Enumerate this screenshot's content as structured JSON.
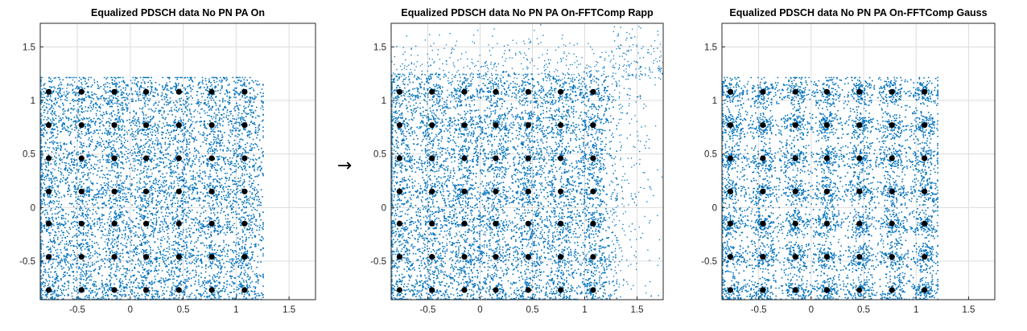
{
  "arrow": {
    "glyph": "→"
  },
  "chart_data": [
    {
      "type": "scatter",
      "title": "Equalized PDSCH data No PN PA On",
      "xlim": [
        -0.85,
        1.75
      ],
      "ylim": [
        -0.86,
        1.72
      ],
      "xticks": [
        -0.5,
        0,
        0.5,
        1,
        1.5
      ],
      "xtick_labels": [
        "-0.5",
        "0",
        "0.5",
        "1",
        "1.5"
      ],
      "yticks": [
        -0.5,
        0,
        0.5,
        1,
        1.5
      ],
      "ytick_labels": [
        "-0.5",
        "0",
        "0.5",
        "1",
        "1.5"
      ],
      "grid": true,
      "reference_points": {
        "x": [
          -0.77,
          -0.46,
          -0.15,
          0.15,
          0.46,
          0.77,
          1.08
        ],
        "y": [
          -0.77,
          -0.46,
          -0.15,
          0.15,
          0.46,
          0.77,
          1.08
        ]
      },
      "cloud": {
        "x_min": -0.85,
        "x_max": 1.25,
        "y_min": -0.85,
        "y_max": 1.22,
        "spread": 0.1,
        "noise": 0.13,
        "rapp_tail": false
      },
      "colors": {
        "samples": "#0072BD",
        "reference": "#000000"
      }
    },
    {
      "type": "scatter",
      "title": "Equalized PDSCH data No PN PA On-FFTComp Rapp",
      "xlim": [
        -0.85,
        1.75
      ],
      "ylim": [
        -0.86,
        1.72
      ],
      "xticks": [
        -0.5,
        0,
        0.5,
        1,
        1.5
      ],
      "xtick_labels": [
        "-0.5",
        "0",
        "0.5",
        "1",
        "1.5"
      ],
      "yticks": [
        -0.5,
        0,
        0.5,
        1,
        1.5
      ],
      "ytick_labels": [
        "-0.5",
        "0",
        "0.5",
        "1",
        "1.5"
      ],
      "grid": true,
      "reference_points": {
        "x": [
          -0.77,
          -0.46,
          -0.15,
          0.15,
          0.46,
          0.77,
          1.08
        ],
        "y": [
          -0.77,
          -0.46,
          -0.15,
          0.15,
          0.46,
          0.77,
          1.08
        ]
      },
      "cloud": {
        "x_min": -0.85,
        "x_max": 1.3,
        "y_min": -0.85,
        "y_max": 1.25,
        "spread": 0.1,
        "noise": 0.12,
        "rapp_tail": true
      },
      "colors": {
        "samples": "#0072BD",
        "reference": "#000000"
      }
    },
    {
      "type": "scatter",
      "title": "Equalized PDSCH data No PN PA On-FFTComp Gauss",
      "xlim": [
        -0.85,
        1.75
      ],
      "ylim": [
        -0.86,
        1.72
      ],
      "xticks": [
        -0.5,
        0,
        0.5,
        1,
        1.5
      ],
      "xtick_labels": [
        "-0.5",
        "0",
        "0.5",
        "1",
        "1.5"
      ],
      "yticks": [
        -0.5,
        0,
        0.5,
        1,
        1.5
      ],
      "ytick_labels": [
        "-0.5",
        "0",
        "0.5",
        "1",
        "1.5"
      ],
      "grid": true,
      "reference_points": {
        "x": [
          -0.77,
          -0.46,
          -0.15,
          0.15,
          0.46,
          0.77,
          1.08
        ],
        "y": [
          -0.77,
          -0.46,
          -0.15,
          0.15,
          0.46,
          0.77,
          1.08
        ]
      },
      "cloud": {
        "x_min": -0.85,
        "x_max": 1.2,
        "y_min": -0.85,
        "y_max": 1.22,
        "spread": 0.075,
        "noise": 0.03,
        "rapp_tail": false
      },
      "colors": {
        "samples": "#0072BD",
        "reference": "#000000"
      }
    }
  ]
}
